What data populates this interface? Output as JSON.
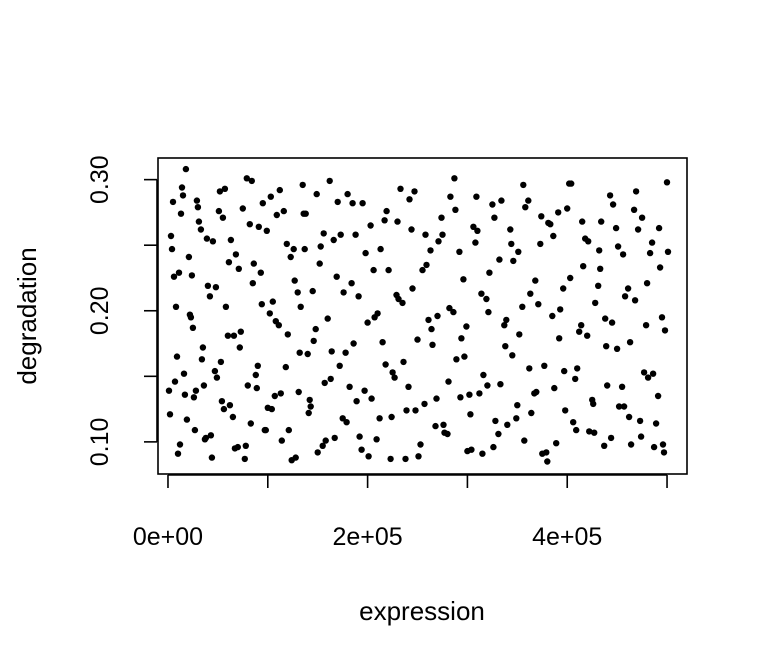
{
  "chart_data": {
    "type": "scatter",
    "title": "",
    "xlabel": "expression",
    "ylabel": "degradation",
    "xlim": [
      -10000,
      520000
    ],
    "ylim": [
      0.0755,
      0.3165
    ],
    "x_ticks": [
      0,
      100000,
      200000,
      300000,
      400000,
      500000
    ],
    "x_tick_labels": [
      "0e+00",
      "",
      "2e+05",
      "",
      "4e+05",
      ""
    ],
    "y_ticks": [
      0.1,
      0.15,
      0.2,
      0.25,
      0.3
    ],
    "y_tick_labels": [
      "0.10",
      "",
      "0.20",
      "",
      "0.30"
    ],
    "grid": false,
    "legend": "none",
    "point_color": "#000000",
    "x": [
      2000,
      5000,
      9000,
      12000,
      14000,
      16000,
      21000,
      25000,
      27000,
      31000,
      36000,
      40000,
      44000,
      51000,
      54000,
      58000,
      63000,
      67000,
      72000,
      79000,
      83000,
      86000,
      90000,
      95000,
      100000,
      105000,
      109000,
      114000,
      120000,
      126000,
      131000,
      135000,
      140000,
      145000,
      150000,
      156000,
      163000,
      169000,
      175000,
      180000,
      186000,
      192000,
      198000,
      204000,
      210000,
      217000,
      223000,
      229000,
      236000,
      242000,
      248000,
      255000,
      261000,
      268000,
      275000,
      281000,
      287000,
      294000,
      300000,
      306000,
      312000,
      319000,
      325000,
      331000,
      337000,
      344000,
      350000,
      356000,
      362000,
      368000,
      375000,
      381000,
      387000,
      393000,
      400000,
      406000,
      412000,
      418000,
      425000,
      431000,
      437000,
      443000,
      450000,
      456000,
      462000,
      468000,
      475000,
      481000,
      487000,
      493000,
      498000,
      3000,
      7000,
      11000,
      15000,
      19000,
      23000,
      28000,
      33000,
      38000,
      42000,
      47000,
      52000,
      56000,
      61000,
      66000,
      70000,
      75000,
      80000,
      85000,
      91000,
      97000,
      102000,
      107000,
      112000,
      118000,
      123000,
      128000,
      133000,
      138000,
      143000,
      148000,
      153000,
      158000,
      164000,
      170000,
      176000,
      182000,
      188000,
      194000,
      200000,
      206000,
      212000,
      219000,
      225000,
      231000,
      238000,
      244000,
      250000,
      257000,
      263000,
      270000,
      277000,
      283000,
      289000,
      296000,
      302000,
      308000,
      315000,
      321000,
      327000,
      333000,
      340000,
      346000,
      352000,
      358000,
      364000,
      371000,
      377000,
      383000,
      389000,
      396000,
      402000,
      408000,
      414000,
      421000,
      427000,
      433000,
      439000,
      446000,
      452000,
      458000,
      464000,
      471000,
      477000,
      483000,
      489000,
      495000,
      500000,
      1000,
      6000,
      10000,
      13000,
      18000,
      22000,
      26000,
      30000,
      35000,
      39000,
      43000,
      48000,
      53000,
      57000,
      62000,
      68000,
      73000,
      78000,
      82000,
      88000,
      93000,
      98000,
      103000,
      108000,
      113000,
      119000,
      124000,
      130000,
      136000,
      141000,
      146000,
      152000,
      157000,
      162000,
      167000,
      173000,
      178000,
      184000,
      189000,
      195000,
      201000,
      207000,
      213000,
      218000,
      224000,
      230000,
      235000,
      241000,
      247000,
      253000,
      259000,
      265000,
      271000,
      276000,
      282000,
      288000,
      293000,
      299000,
      304000,
      310000,
      316000,
      322000,
      328000,
      334000,
      339000,
      345000,
      351000,
      357000,
      363000,
      369000,
      374000,
      380000,
      386000,
      392000,
      398000,
      404000,
      410000,
      416000,
      422000,
      428000,
      434000,
      440000,
      445000,
      451000,
      457000,
      463000,
      469000,
      474000,
      480000,
      486000,
      492000,
      497000,
      501000,
      4000,
      8000,
      17000,
      24000,
      29000,
      34000,
      37000,
      45000,
      49000,
      55000,
      60000,
      65000,
      71000,
      77000,
      84000,
      89000,
      94000,
      99000,
      104000,
      111000,
      116000,
      121000,
      127000,
      132000,
      137000,
      142000,
      149000,
      155000,
      160000,
      166000,
      172000,
      179000,
      185000,
      191000,
      197000,
      203000,
      209000,
      215000,
      221000,
      227000,
      233000,
      239000,
      245000,
      251000,
      258000,
      264000,
      269000,
      274000,
      280000,
      286000,
      292000,
      297000,
      303000,
      309000,
      314000,
      320000,
      326000,
      332000,
      338000,
      343000,
      349000,
      355000,
      361000,
      367000,
      373000,
      379000,
      385000,
      391000,
      397000,
      403000,
      409000,
      415000,
      420000,
      426000,
      432000,
      438000,
      444000,
      449000,
      455000,
      461000,
      467000,
      473000,
      479000,
      485000,
      491000,
      496000
    ],
    "y": [
      0.121,
      0.283,
      0.165,
      0.098,
      0.294,
      0.152,
      0.241,
      0.187,
      0.109,
      0.268,
      0.143,
      0.219,
      0.088,
      0.276,
      0.131,
      0.203,
      0.254,
      0.095,
      0.172,
      0.301,
      0.114,
      0.236,
      0.158,
      0.282,
      0.126,
      0.207,
      0.273,
      0.101,
      0.182,
      0.247,
      0.138,
      0.296,
      0.167,
      0.215,
      0.092,
      0.259,
      0.148,
      0.226,
      0.118,
      0.289,
      0.175,
      0.104,
      0.244,
      0.133,
      0.198,
      0.269,
      0.087,
      0.212,
      0.161,
      0.285,
      0.124,
      0.231,
      0.193,
      0.112,
      0.258,
      0.146,
      0.301,
      0.179,
      0.093,
      0.264,
      0.137,
      0.209,
      0.281,
      0.106,
      0.189,
      0.251,
      0.128,
      0.296,
      0.156,
      0.223,
      0.091,
      0.267,
      0.141,
      0.201,
      0.278,
      0.115,
      0.184,
      0.255,
      0.132,
      0.219,
      0.097,
      0.288,
      0.171,
      0.243,
      0.119,
      0.208,
      0.271,
      0.149,
      0.096,
      0.233,
      0.185,
      0.257,
      0.146,
      0.229,
      0.288,
      0.117,
      0.195,
      0.139,
      0.262,
      0.103,
      0.211,
      0.154,
      0.291,
      0.125,
      0.237,
      0.181,
      0.096,
      0.278,
      0.143,
      0.221,
      0.264,
      0.109,
      0.198,
      0.135,
      0.292,
      0.157,
      0.241,
      0.088,
      0.203,
      0.274,
      0.127,
      0.186,
      0.249,
      0.101,
      0.169,
      0.283,
      0.214,
      0.142,
      0.258,
      0.094,
      0.191,
      0.231,
      0.118,
      0.276,
      0.153,
      0.209,
      0.087,
      0.262,
      0.178,
      0.129,
      0.246,
      0.196,
      0.107,
      0.287,
      0.163,
      0.224,
      0.136,
      0.252,
      0.091,
      0.199,
      0.271,
      0.144,
      0.113,
      0.238,
      0.182,
      0.279,
      0.122,
      0.205,
      0.158,
      0.266,
      0.099,
      0.217,
      0.297,
      0.148,
      0.189,
      0.253,
      0.107,
      0.232,
      0.173,
      0.281,
      0.127,
      0.211,
      0.098,
      0.262,
      0.153,
      0.244,
      0.114,
      0.195,
      0.298,
      0.139,
      0.226,
      0.091,
      0.274,
      0.308,
      0.197,
      0.134,
      0.279,
      0.172,
      0.255,
      0.105,
      0.218,
      0.161,
      0.293,
      0.128,
      0.243,
      0.184,
      0.097,
      0.266,
      0.151,
      0.229,
      0.109,
      0.287,
      0.192,
      0.137,
      0.251,
      0.086,
      0.214,
      0.274,
      0.122,
      0.177,
      0.236,
      0.145,
      0.299,
      0.103,
      0.258,
      0.168,
      0.221,
      0.131,
      0.282,
      0.089,
      0.195,
      0.247,
      0.159,
      0.119,
      0.268,
      0.206,
      0.142,
      0.291,
      0.098,
      0.235,
      0.174,
      0.253,
      0.113,
      0.202,
      0.277,
      0.134,
      0.188,
      0.094,
      0.261,
      0.151,
      0.229,
      0.116,
      0.284,
      0.193,
      0.166,
      0.245,
      0.101,
      0.213,
      0.138,
      0.272,
      0.085,
      0.257,
      0.179,
      0.124,
      0.297,
      0.156,
      0.234,
      0.108,
      0.206,
      0.268,
      0.143,
      0.191,
      0.249,
      0.127,
      0.176,
      0.291,
      0.104,
      0.221,
      0.152,
      0.263,
      0.092,
      0.245,
      0.247,
      0.203,
      0.136,
      0.227,
      0.284,
      0.163,
      0.102,
      0.253,
      0.149,
      0.271,
      0.181,
      0.119,
      0.232,
      0.087,
      0.299,
      0.141,
      0.205,
      0.261,
      0.125,
      0.189,
      0.276,
      0.109,
      0.223,
      0.168,
      0.247,
      0.132,
      0.289,
      0.097,
      0.194,
      0.254,
      0.158,
      0.115,
      0.282,
      0.211,
      0.139,
      0.265,
      0.102,
      0.176,
      0.231,
      0.149,
      0.293,
      0.124,
      0.217,
      0.089,
      0.258,
      0.186,
      0.133,
      0.271,
      0.106,
      0.199,
      0.245,
      0.165,
      0.121,
      0.287,
      0.213,
      0.143,
      0.096,
      0.239,
      0.173,
      0.262,
      0.118,
      0.203,
      0.284,
      0.137,
      0.251,
      0.092,
      0.196,
      0.275,
      0.154,
      0.225,
      0.109,
      0.268,
      0.181,
      0.129,
      0.246,
      0.194,
      0.103,
      0.263,
      0.142,
      0.217,
      0.277,
      0.116,
      0.189,
      0.252,
      0.135,
      0.098
    ]
  }
}
